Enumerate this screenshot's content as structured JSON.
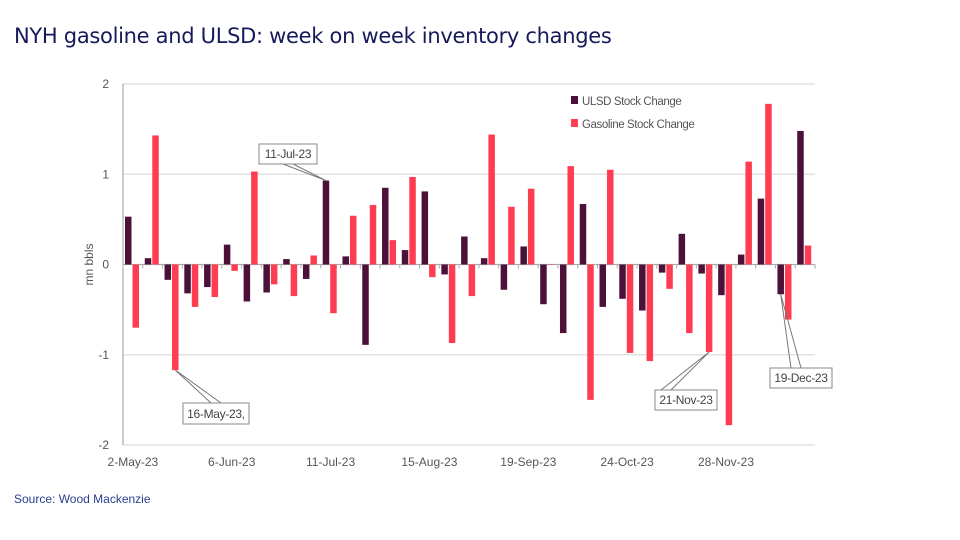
{
  "title": "NYH gasoline and ULSD: week on week inventory changes",
  "source": "Source: Wood Mackenzie",
  "colors": {
    "ulsd": "#4b1139",
    "gasoline": "#ff3d52",
    "title": "#16195a"
  },
  "chart_data": {
    "type": "bar",
    "ylabel": "mn bbls",
    "ylim": [
      -2,
      2
    ],
    "yticks": [
      2,
      1,
      0,
      -1,
      -2
    ],
    "grid": true,
    "legend": "top-right",
    "categories": [
      "2-May-23",
      "9-May-23",
      "16-May-23",
      "23-May-23",
      "30-May-23",
      "6-Jun-23",
      "13-Jun-23",
      "20-Jun-23",
      "27-Jun-23",
      "4-Jul-23",
      "11-Jul-23",
      "18-Jul-23",
      "25-Jul-23",
      "1-Aug-23",
      "8-Aug-23",
      "15-Aug-23",
      "22-Aug-23",
      "29-Aug-23",
      "5-Sep-23",
      "12-Sep-23",
      "19-Sep-23",
      "26-Sep-23",
      "3-Oct-23",
      "10-Oct-23",
      "17-Oct-23",
      "24-Oct-23",
      "31-Oct-23",
      "7-Nov-23",
      "14-Nov-23",
      "21-Nov-23",
      "28-Nov-23",
      "5-Dec-23",
      "12-Dec-23",
      "19-Dec-23",
      "26-Dec-23"
    ],
    "xtick_labels": [
      "2-May-23",
      "6-Jun-23",
      "11-Jul-23",
      "15-Aug-23",
      "19-Sep-23",
      "24-Oct-23",
      "28-Nov-23"
    ],
    "series": [
      {
        "name": "ULSD Stock Change",
        "values": [
          0.53,
          0.07,
          -0.17,
          -0.32,
          -0.25,
          0.22,
          -0.41,
          -0.31,
          0.06,
          -0.16,
          0.93,
          0.09,
          -0.89,
          0.85,
          0.16,
          0.81,
          -0.11,
          0.31,
          0.07,
          -0.28,
          0.2,
          -0.44,
          -0.76,
          0.67,
          -0.47,
          -0.38,
          -0.51,
          -0.09,
          0.34,
          -0.1,
          -0.34,
          0.11,
          0.73,
          -0.33,
          1.48
        ]
      },
      {
        "name": "Gasoline Stock Change",
        "values": [
          -0.7,
          1.43,
          -1.17,
          -0.47,
          -0.36,
          -0.07,
          1.03,
          -0.22,
          -0.35,
          0.1,
          -0.54,
          0.54,
          0.66,
          0.27,
          0.97,
          -0.14,
          -0.87,
          -0.35,
          1.44,
          0.64,
          0.84,
          0.0,
          1.09,
          -1.5,
          1.05,
          -0.98,
          -1.07,
          -0.27,
          -0.76,
          -0.97,
          -1.78,
          1.14,
          1.78,
          -0.61,
          0.21
        ]
      }
    ],
    "annotations": [
      {
        "text": "16-May-23,",
        "category": "16-May-23",
        "series": 1
      },
      {
        "text": "11-Jul-23",
        "category": "11-Jul-23",
        "series": 0
      },
      {
        "text": "21-Nov-23",
        "category": "21-Nov-23",
        "series": 1
      },
      {
        "text": "19-Dec-23",
        "category": "19-Dec-23",
        "series": 0
      }
    ]
  }
}
